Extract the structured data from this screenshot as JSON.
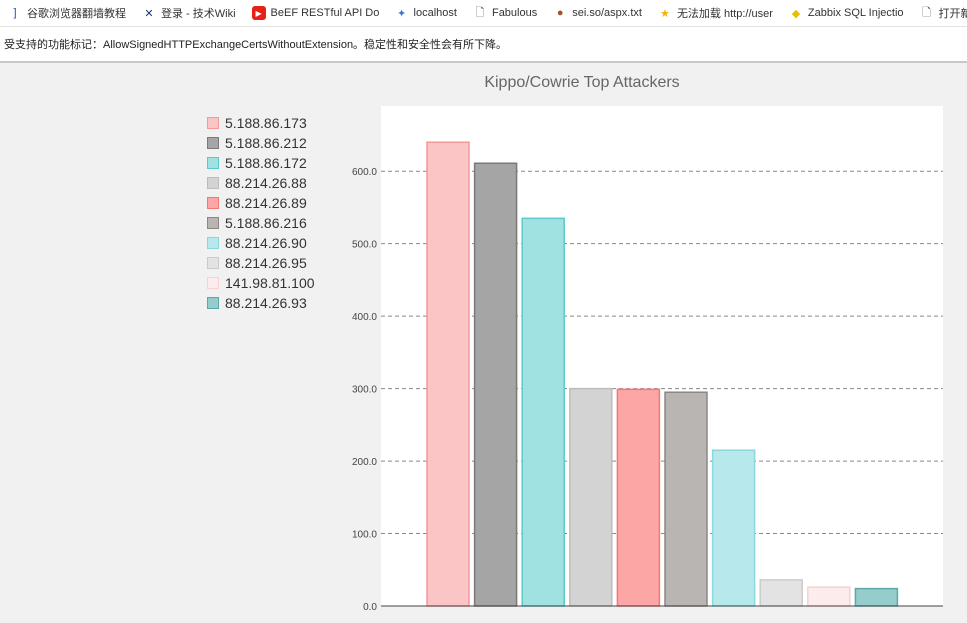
{
  "bookmarks": [
    {
      "label": "谷歌浏览器翻墙教程",
      "icon": "bracket-icon"
    },
    {
      "label": "登录 - 技术Wiki",
      "icon": "x-logo-icon"
    },
    {
      "label": "BeEF RESTful API Do",
      "icon": "youtube-icon"
    },
    {
      "label": "localhost",
      "icon": "pinwheel-icon"
    },
    {
      "label": "Fabulous",
      "icon": "page-icon"
    },
    {
      "label": "sei.so/aspx.txt",
      "icon": "globe-icon"
    },
    {
      "label": "无法加载 http://user",
      "icon": "star-icon"
    },
    {
      "label": "Zabbix SQL Injectio",
      "icon": "diamond-icon"
    },
    {
      "label": "打开新的标签",
      "icon": "page-icon"
    }
  ],
  "infobar": {
    "text": "受支持的功能标记：AllowSignedHTTPExchangeCertsWithoutExtension。稳定性和安全性会有所下降。"
  },
  "chart_data": {
    "type": "bar",
    "title": "Kippo/Cowrie Top Attackers",
    "categories": [
      "5.188.86.173",
      "5.188.86.212",
      "5.188.86.172",
      "88.214.26.88",
      "88.214.26.89",
      "5.188.86.216",
      "88.214.26.90",
      "88.214.26.95",
      "141.98.81.100",
      "88.214.26.93"
    ],
    "values": [
      640,
      611,
      535,
      300,
      299,
      295,
      215,
      36,
      26,
      24
    ],
    "fills": [
      "#fbc5c5",
      "#a5a5a5",
      "#a0e2e2",
      "#d3d3d3",
      "#fda6a6",
      "#b9b5b2",
      "#b7e9ec",
      "#e3e3e3",
      "#fdecec",
      "#95cccc"
    ],
    "strokes": [
      "#f29a9a",
      "#7a7a7a",
      "#5ccaca",
      "#bdbdbd",
      "#f27878",
      "#8c8784",
      "#8ad8dc",
      "#cbcbcb",
      "#f6d2d2",
      "#5fa8a8"
    ],
    "yticks": [
      "0.0",
      "100.0",
      "200.0",
      "300.0",
      "400.0",
      "500.0",
      "600.0"
    ],
    "ylim": [
      0,
      690
    ],
    "grid": true,
    "legend": "left"
  }
}
